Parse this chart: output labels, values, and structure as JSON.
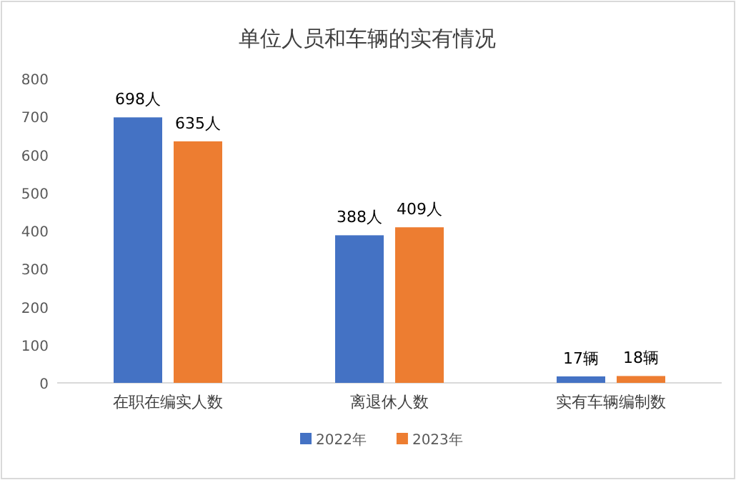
{
  "chart_data": {
    "type": "bar",
    "title": "单位人员和车辆的实有情况",
    "categories": [
      "在职在编实人数",
      "离退休人数",
      "实有车辆编制数"
    ],
    "series": [
      {
        "name": "2022年",
        "color": "#4472c4",
        "values": [
          698,
          388,
          17
        ],
        "value_labels": [
          "698人",
          "388人",
          "17辆"
        ]
      },
      {
        "name": "2023年",
        "color": "#ed7d31",
        "values": [
          635,
          409,
          18
        ],
        "value_labels": [
          "635人",
          "409人",
          "18辆"
        ]
      }
    ],
    "ylim": [
      0,
      800
    ],
    "yticks": [
      0,
      100,
      200,
      300,
      400,
      500,
      600,
      700,
      800
    ],
    "legend": "bottom"
  }
}
